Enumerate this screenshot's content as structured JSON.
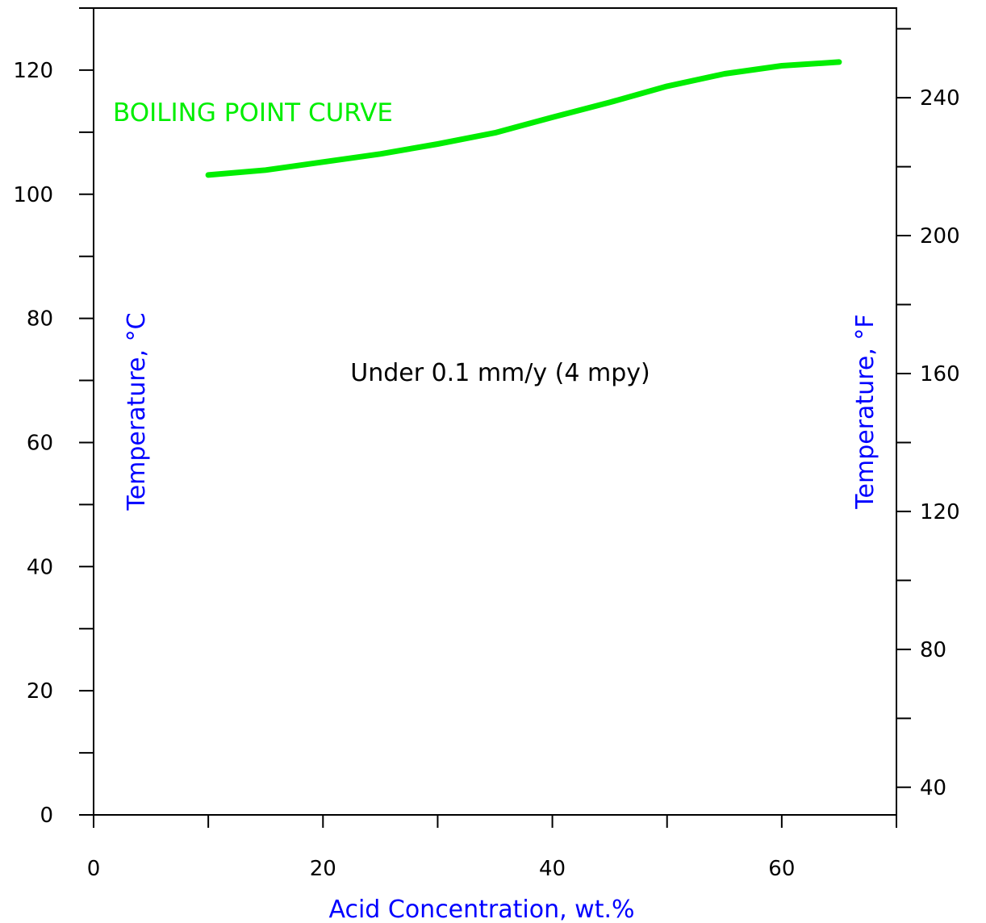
{
  "chart_data": {
    "type": "line",
    "xlabel": "Acid Concentration, wt.%",
    "ylabel_left": "Temperature, °C",
    "ylabel_right": "Temperature, °F",
    "xlim": [
      0,
      70
    ],
    "ylim_c": [
      0,
      130
    ],
    "ylim_f": [
      32,
      266
    ],
    "x_ticks": [
      0,
      20,
      40,
      60
    ],
    "x_minor_ticks": [
      10,
      30,
      50,
      70
    ],
    "y_ticks_c": [
      0,
      20,
      40,
      60,
      80,
      100,
      120
    ],
    "y_minor_ticks_c": [
      10,
      30,
      50,
      70,
      90,
      110,
      130
    ],
    "y_ticks_f": [
      40,
      80,
      120,
      160,
      200,
      240
    ],
    "y_minor_ticks_f": [
      60,
      100,
      140,
      180,
      220,
      260
    ],
    "grid": false,
    "series": [
      {
        "name": "BOILING POINT CURVE",
        "color": "#00ee00",
        "x": [
          10,
          15,
          20,
          25,
          30,
          35,
          40,
          45,
          50,
          55,
          60,
          65
        ],
        "y": [
          103.1,
          103.9,
          105.2,
          106.5,
          108.1,
          109.9,
          112.4,
          114.8,
          117.4,
          119.4,
          120.7,
          121.3
        ]
      }
    ],
    "annotations": [
      {
        "text": "Under 0.1 mm/y (4 mpy)",
        "color": "#000000"
      }
    ]
  }
}
